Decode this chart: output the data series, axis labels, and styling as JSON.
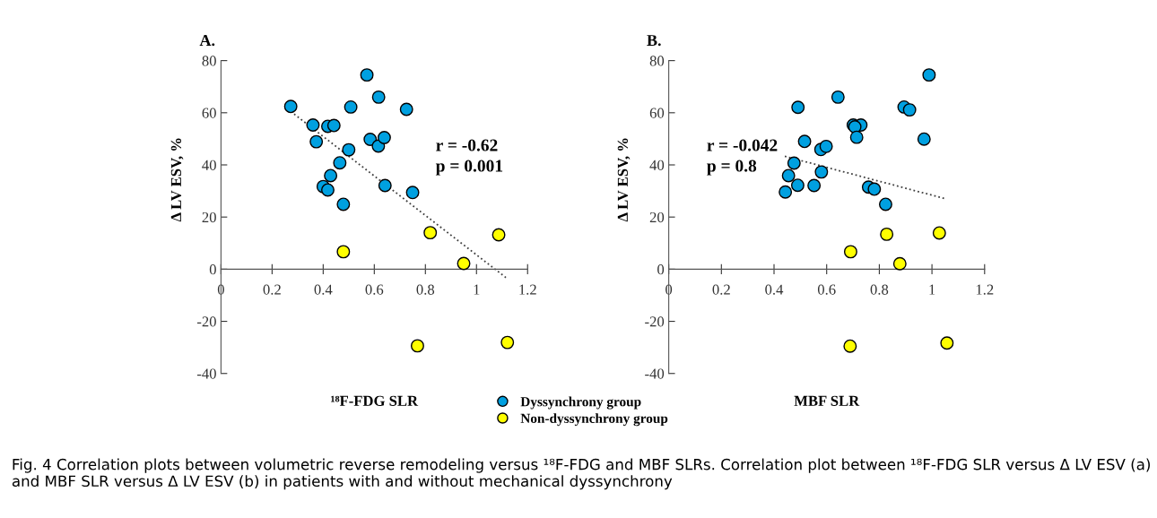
{
  "chart_data": [
    {
      "type": "scatter",
      "title": "A.",
      "xlabel": "¹⁸F-FDG SLR",
      "ylabel": "Δ LV ESV, %",
      "xlim": [
        0,
        1.2
      ],
      "xticks": [
        0,
        0.2,
        0.4,
        0.6,
        0.8,
        1,
        1.2
      ],
      "ylim": [
        -40,
        80
      ],
      "yticks": [
        -40,
        -20,
        0,
        20,
        40,
        60,
        80
      ],
      "grid": false,
      "legend": "bottom",
      "marker": "circle",
      "annotations": [
        "r = -0.62\np = 0.001",
        "Fig. 4 Correlation plots between volumetric reverse remodeling versus ¹⁸F-FDG and MBF SLRs. Correlation plot between ¹⁸F-FDG SLR versus Δ LV ESV (a) and MBF SLR versus Δ LV ESV (b) in patients with and without mechanical dyssynchrony"
      ],
      "series": [
        {
          "name": "Dyssynchrony group",
          "color": "#00a0e0",
          "x": [
            0.273,
            0.36,
            0.373,
            0.418,
            0.442,
            0.508,
            0.571,
            0.617,
            0.726,
            0.584,
            0.616,
            0.639,
            0.5,
            0.465,
            0.429,
            0.4,
            0.418,
            0.479,
            0.642,
            0.75
          ],
          "values": [
            62.4,
            55.3,
            48.9,
            54.8,
            55.1,
            62.2,
            74.5,
            66.0,
            61.3,
            49.8,
            47.2,
            50.5,
            45.8,
            40.8,
            35.9,
            31.7,
            30.4,
            24.9,
            32.1,
            29.4
          ]
        },
        {
          "name": "Non-dyssynchrony group",
          "color": "#ffff00",
          "x": [
            0.479,
            0.819,
            0.95,
            1.087,
            0.769,
            1.121
          ],
          "values": [
            6.7,
            14.0,
            2.2,
            13.2,
            -29.4,
            -28.1
          ]
        },
        {
          "type": "line",
          "marker": "none",
          "color": "#404040",
          "line_style": "dotted",
          "x": [
            0.273,
            1.115
          ],
          "values": [
            60.5,
            -3.2
          ]
        }
      ]
    },
    {
      "type": "scatter",
      "title": "B.",
      "xlabel": "MBF SLR",
      "ylabel": "Δ LV ESV, %",
      "xlim": [
        0,
        1.2
      ],
      "xticks": [
        0,
        0.2,
        0.4,
        0.6,
        0.8,
        1,
        1.2
      ],
      "ylim": [
        -40,
        80
      ],
      "yticks": [
        -40,
        -20,
        0,
        20,
        40,
        60,
        80
      ],
      "grid": false,
      "legend": "bottom",
      "marker": "circle",
      "annotations": [
        "r = -0.042\np = 0.8"
      ],
      "series": [
        {
          "name": "Dyssynchrony group",
          "color": "#00a0e0",
          "x": [
            0.989,
            0.643,
            0.491,
            0.894,
            0.915,
            0.701,
            0.73,
            0.707,
            0.714,
            0.97,
            0.516,
            0.578,
            0.598,
            0.476,
            0.58,
            0.455,
            0.49,
            0.552,
            0.443,
            0.759,
            0.781,
            0.824
          ],
          "values": [
            74.5,
            66.0,
            62.1,
            62.2,
            61.1,
            55.3,
            55.3,
            54.6,
            50.6,
            49.9,
            49.0,
            45.9,
            47.1,
            40.7,
            37.3,
            35.9,
            32.2,
            32.1,
            29.6,
            31.5,
            30.7,
            24.9
          ]
        },
        {
          "name": "Non-dyssynchrony group",
          "color": "#ffff00",
          "x": [
            0.691,
            0.828,
            0.878,
            1.028,
            0.689,
            1.057
          ],
          "values": [
            6.7,
            13.4,
            2.1,
            13.9,
            -29.5,
            -28.3
          ]
        },
        {
          "type": "line",
          "marker": "none",
          "color": "#404040",
          "line_style": "dotted",
          "x": [
            0.441,
            1.052
          ],
          "values": [
            43.3,
            27.0
          ]
        }
      ]
    }
  ]
}
